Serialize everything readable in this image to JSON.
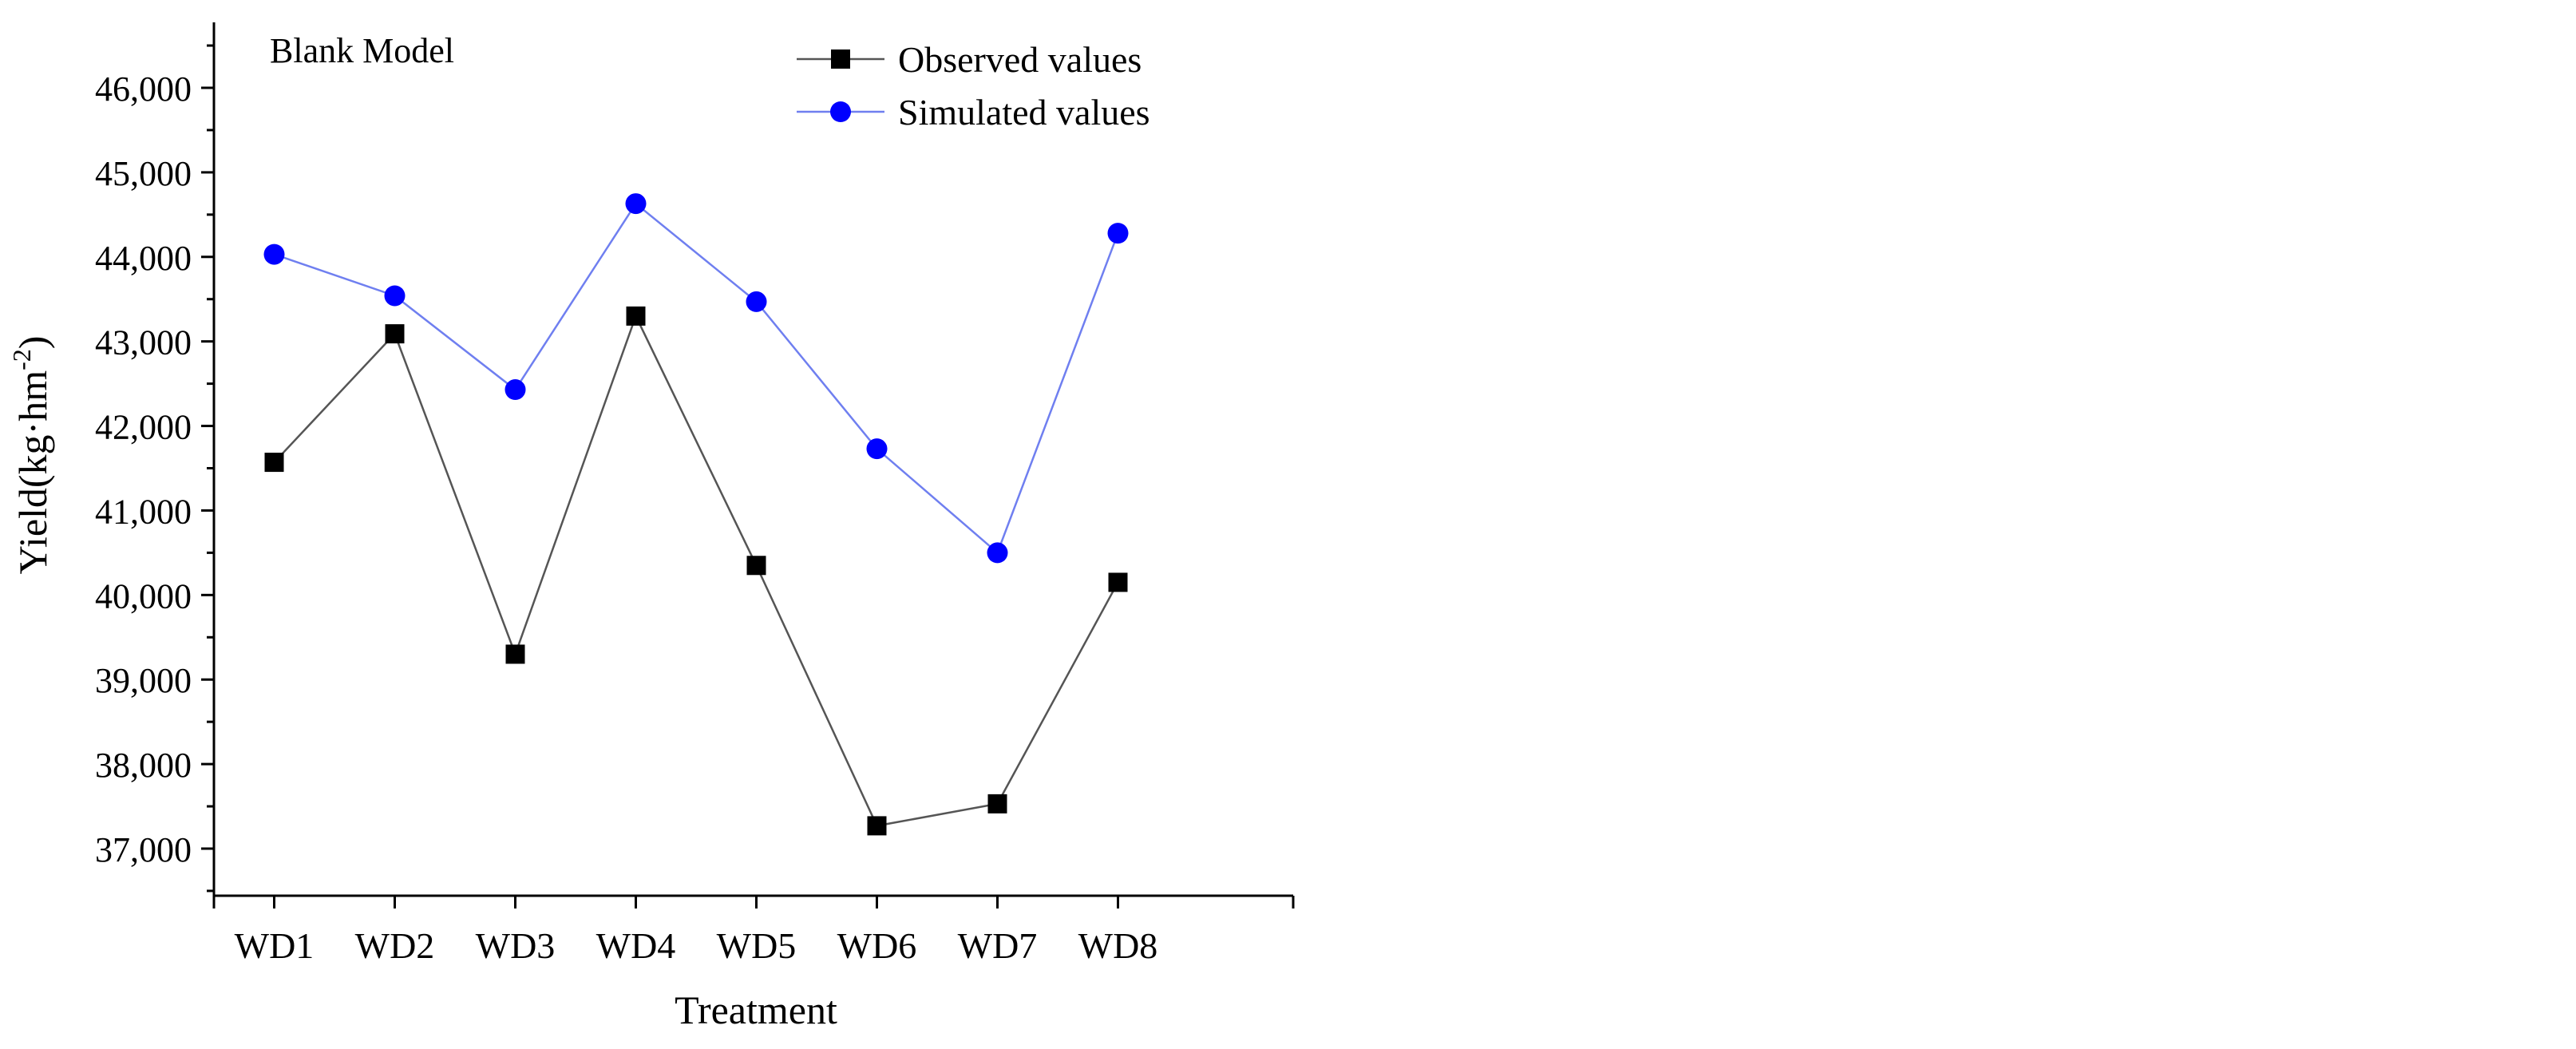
{
  "chart_data": {
    "type": "line",
    "title": "Blank Model",
    "xlabel": "Treatment",
    "ylabel": "Yield(kg·hm",
    "ylabel_superscript": "-2",
    "ylabel_close": ")",
    "categories": [
      "WD1",
      "WD2",
      "WD3",
      "WD4",
      "WD5",
      "WD6",
      "WD7",
      "WD8"
    ],
    "series": [
      {
        "name": "Observed values",
        "marker": "square",
        "line_color": "#555555",
        "marker_color": "#000000",
        "values": [
          41570,
          43090,
          39300,
          43300,
          40350,
          37270,
          37530,
          40150
        ]
      },
      {
        "name": "Simulated values",
        "marker": "circle",
        "line_color": "#6f7ff0",
        "marker_color": "#0000ff",
        "values": [
          44030,
          43540,
          42430,
          44630,
          43470,
          41730,
          40500,
          44280
        ]
      }
    ],
    "ylim": [
      36500,
      46800
    ],
    "yticks": [
      37000,
      38000,
      39000,
      40000,
      41000,
      42000,
      43000,
      44000,
      45000,
      46000
    ],
    "ytick_labels": [
      "37,000",
      "38,000",
      "39,000",
      "40,000",
      "41,000",
      "42,000",
      "43,000",
      "44,000",
      "45,000",
      "46,000"
    ],
    "legend_position": "top-center",
    "grid": false
  }
}
